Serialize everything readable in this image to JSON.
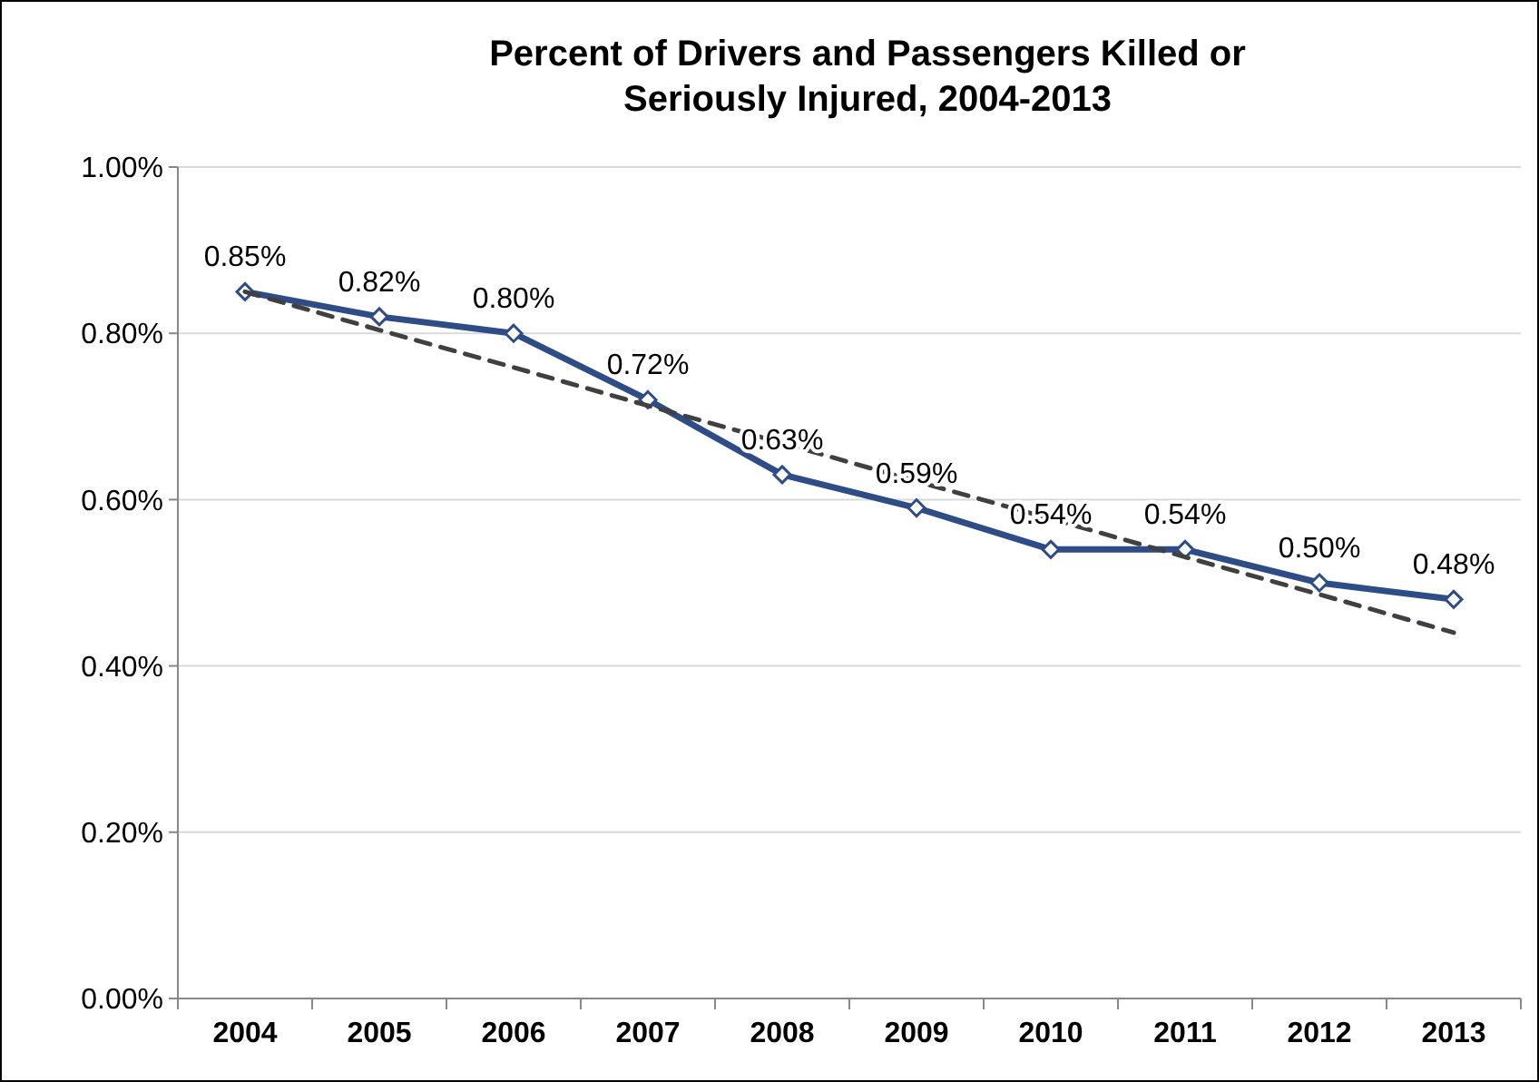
{
  "chart_data": {
    "type": "line",
    "title": "Percent of Drivers and Passengers Killed or Seriously Injured, 2004-2013",
    "categories": [
      "2004",
      "2005",
      "2006",
      "2007",
      "2008",
      "2009",
      "2010",
      "2011",
      "2012",
      "2013"
    ],
    "series": [
      {
        "color": "#2e4d87",
        "values": [
          0.85,
          0.82,
          0.8,
          0.72,
          0.63,
          0.59,
          0.54,
          0.54,
          0.5,
          0.48
        ],
        "marker": "diamond",
        "line_style": "solid",
        "value_labels": [
          "0.85%",
          "0.82%",
          "0.80%",
          "0.72%",
          "0.63%",
          "0.59%",
          "0.54%",
          "0.54%",
          "0.50%",
          "0.48%"
        ]
      },
      {
        "color": "#404040",
        "values": [
          0.85,
          0.804,
          0.759,
          0.713,
          0.668,
          0.622,
          0.577,
          0.531,
          0.486,
          0.44
        ],
        "marker": "none",
        "line_style": "dashed"
      }
    ],
    "ylim": [
      0,
      1
    ],
    "yticks": [
      {
        "value": 0,
        "label": "0.00%"
      },
      {
        "value": 0.2,
        "label": "0.20%"
      },
      {
        "value": 0.4,
        "label": "0.40%"
      },
      {
        "value": 0.6,
        "label": "0.60%"
      },
      {
        "value": 0.8,
        "label": "0.80%"
      },
      {
        "value": 1,
        "label": "1.00%"
      }
    ],
    "grid": "y"
  }
}
